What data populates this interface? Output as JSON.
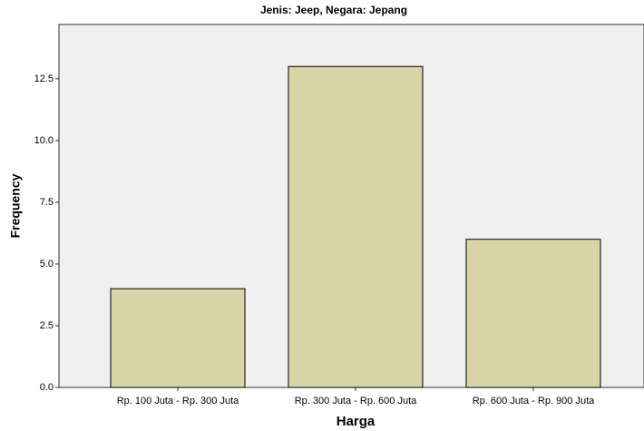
{
  "chart_data": {
    "type": "bar",
    "title": "Jenis: Jeep, Negara: Jepang",
    "x_label": "Harga",
    "y_label": "Frequency",
    "categories": [
      "Rp. 100 Juta - Rp. 300 Juta",
      "Rp. 300 Juta - Rp. 600 Juta",
      "Rp. 600 Juta - Rp. 900 Juta"
    ],
    "values": [
      4,
      13,
      6
    ],
    "color": "#d9d4a8",
    "ylim": [
      0,
      14.7
    ],
    "yticks": [
      {
        "value": 0,
        "label": "0.0"
      },
      2.5,
      {
        "value": 5,
        "label": "5.0"
      },
      7.5,
      {
        "value": 10,
        "label": "10.0"
      },
      12.5
    ]
  }
}
